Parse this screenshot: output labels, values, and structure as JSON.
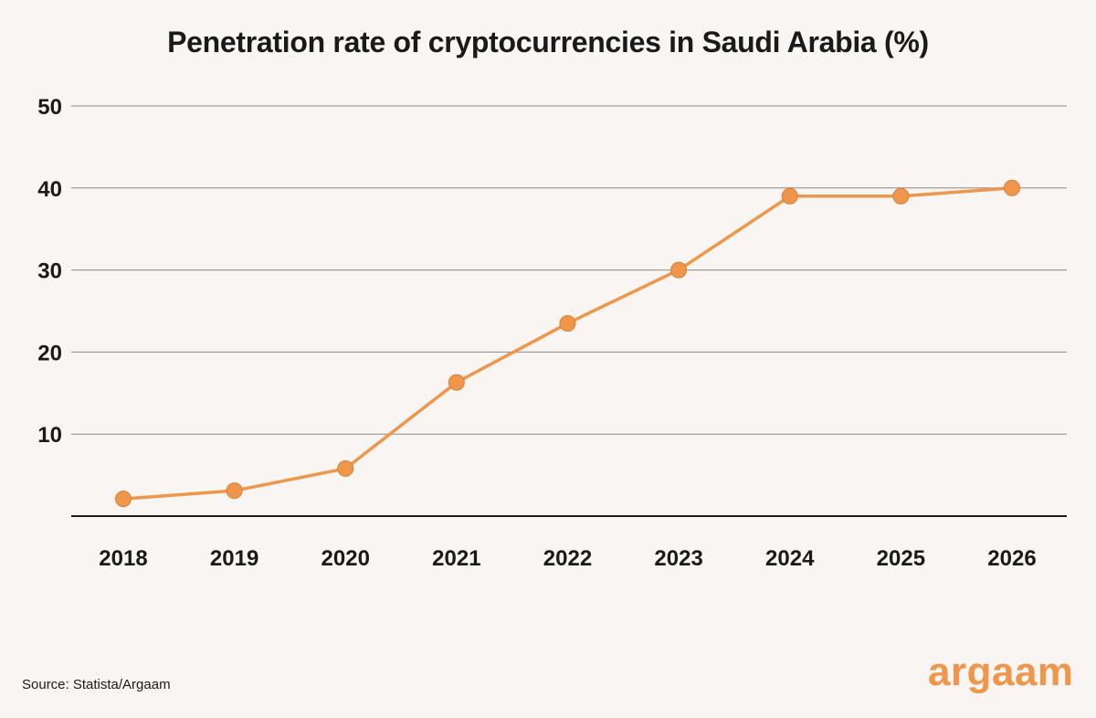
{
  "chart_data": {
    "type": "line",
    "title": "Penetration rate of cryptocurrencies in Saudi Arabia (%)",
    "xlabel": "",
    "ylabel": "",
    "categories": [
      "2018",
      "2019",
      "2020",
      "2021",
      "2022",
      "2023",
      "2024",
      "2025",
      "2026"
    ],
    "series": [
      {
        "name": "Penetration rate",
        "values": [
          2.1,
          3.1,
          5.8,
          16.3,
          23.5,
          30.0,
          39.0,
          39.0,
          40.0
        ]
      }
    ],
    "yticks": [
      10,
      20,
      30,
      40,
      50
    ],
    "ylim": [
      0,
      50
    ],
    "grid": true,
    "legend": "none"
  },
  "colors": {
    "background": "#f8f5f2",
    "series": "#f0964a",
    "gridline": "#8a8a8a",
    "axis": "#1a1a1a",
    "text": "#1a1a1a"
  },
  "footer": {
    "source": "Source: Statista/Argaam",
    "brand": "argaam"
  }
}
